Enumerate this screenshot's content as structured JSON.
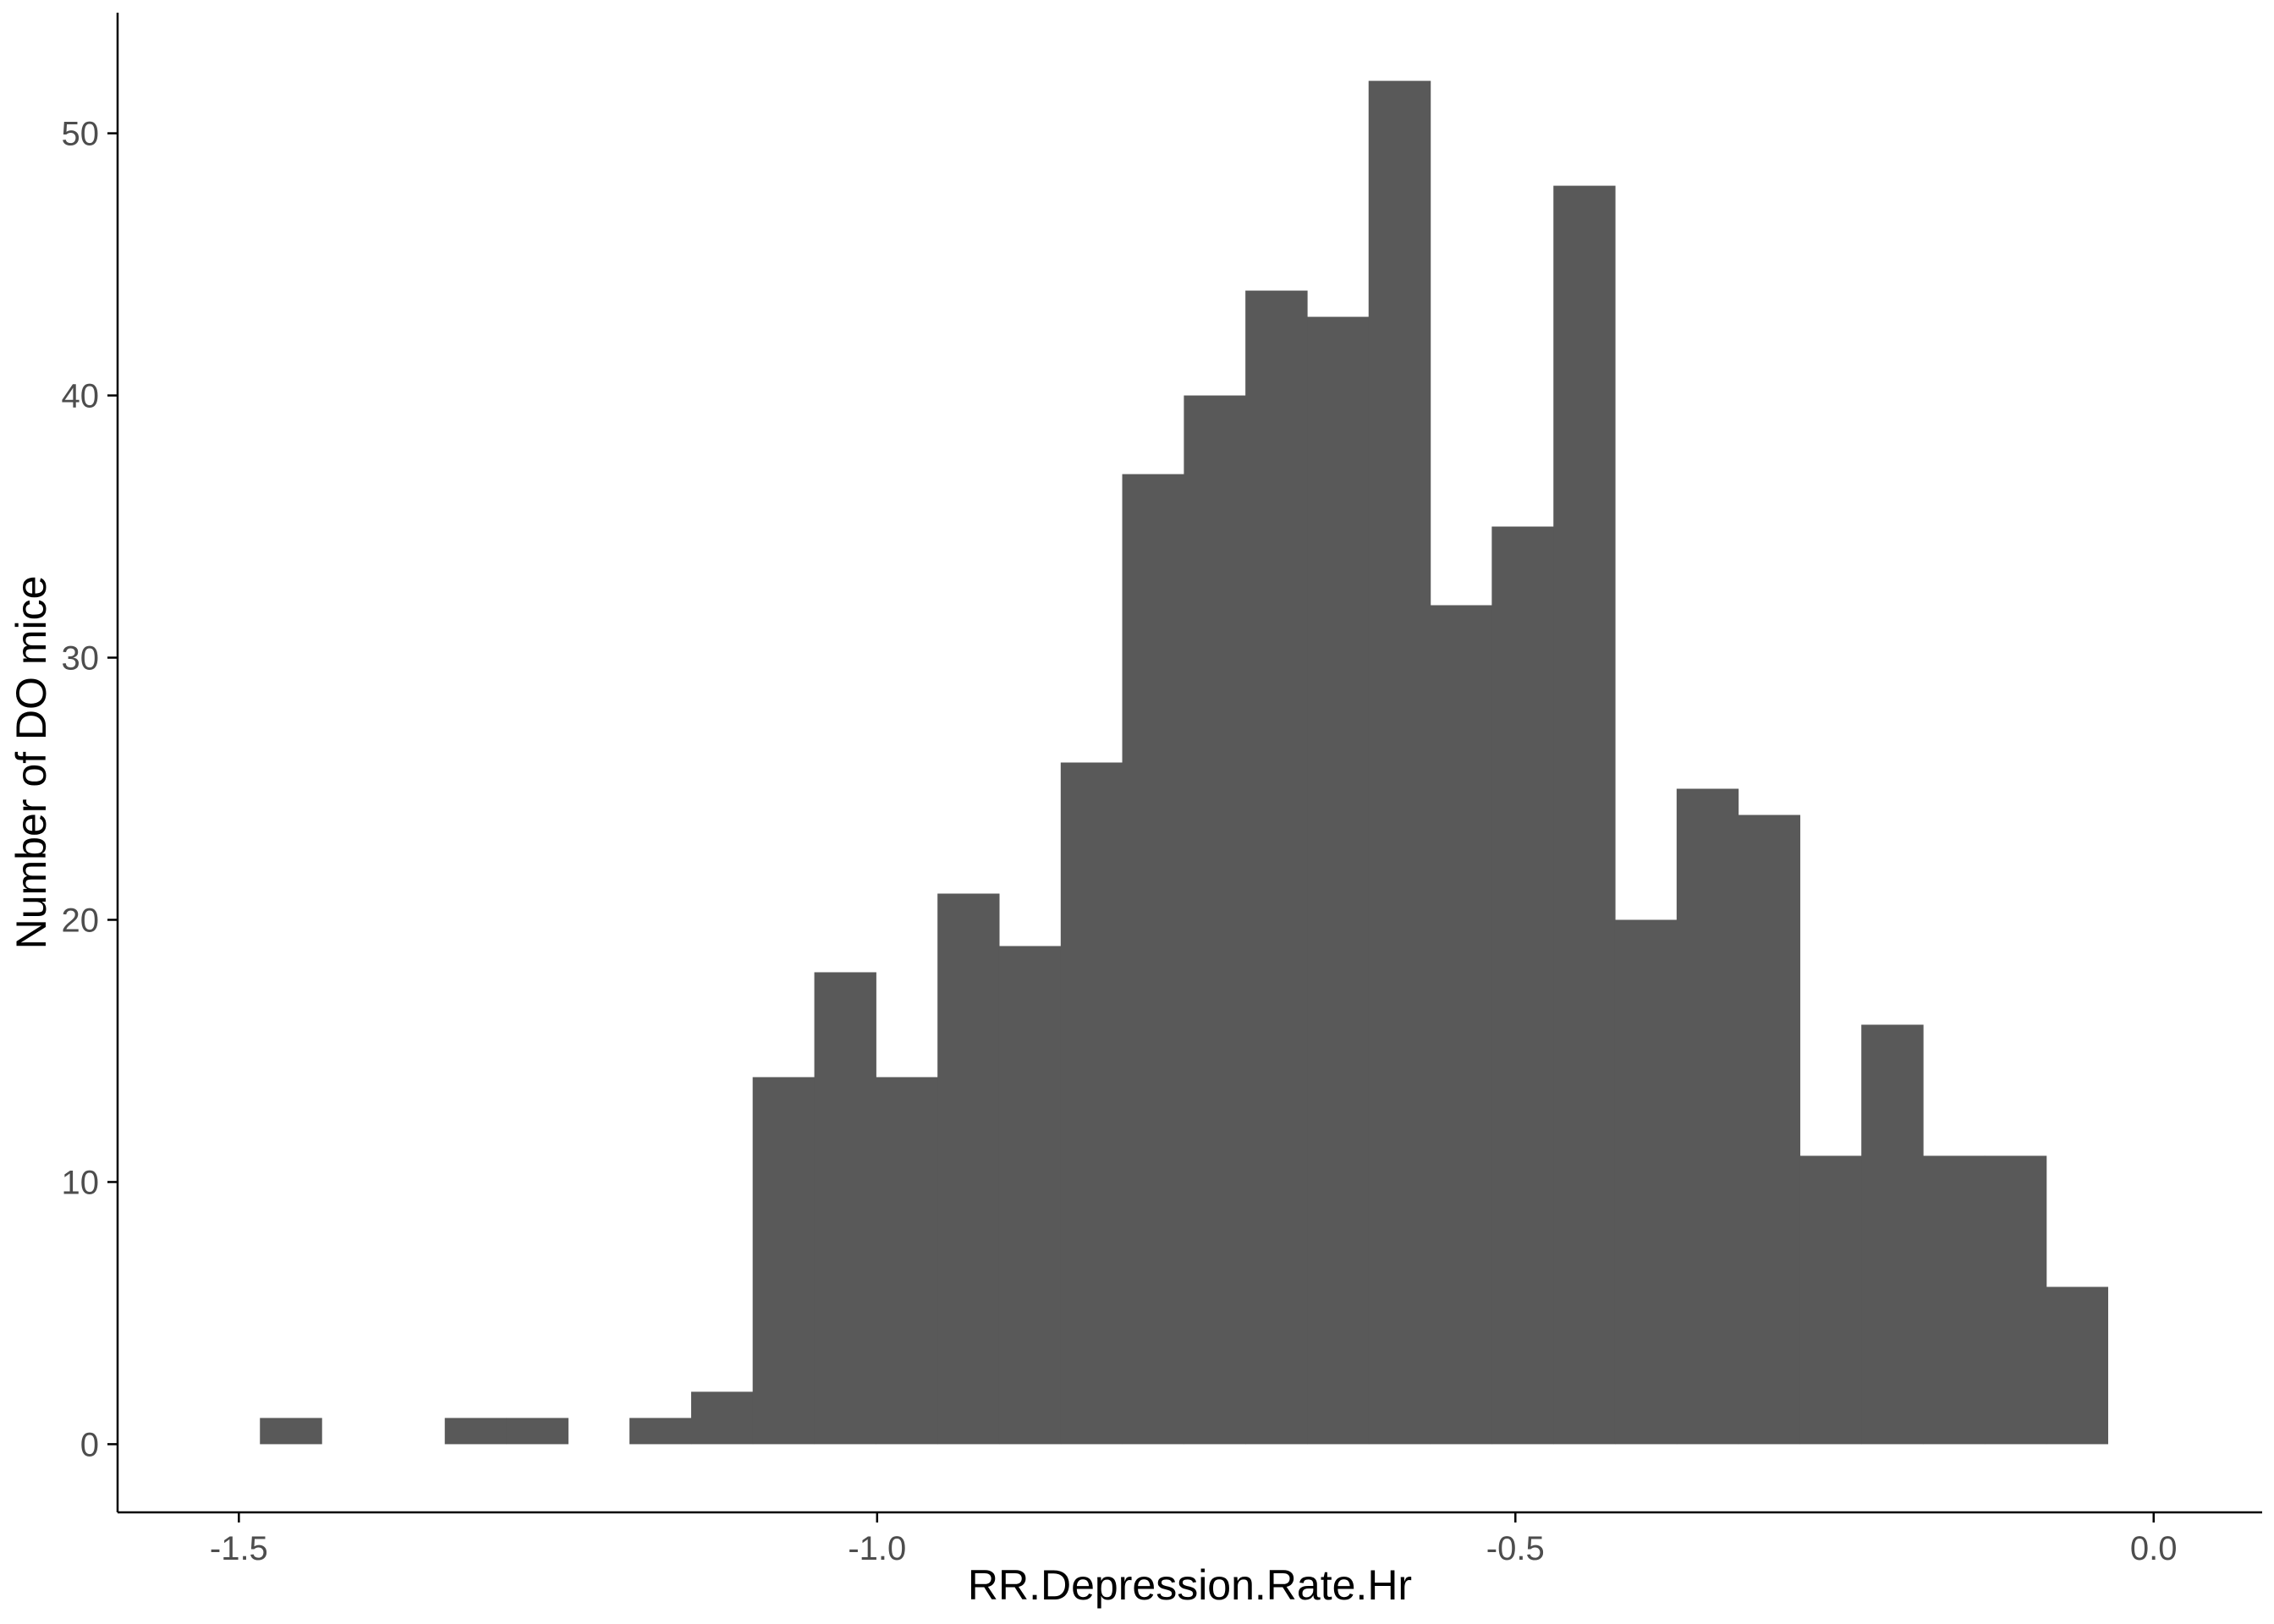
{
  "chart_data": {
    "type": "bar",
    "subtype": "histogram",
    "title": "",
    "xlabel": "RR.Depression.Rate.Hr",
    "ylabel": "Number of DO mice",
    "xlim": [
      -1.595,
      0.085
    ],
    "ylim": [
      -2.6,
      54.6
    ],
    "x_ticks": [
      -1.5,
      -1.0,
      -0.5,
      0.0
    ],
    "x_tick_labels": [
      "-1.5",
      "-1.0",
      "-0.5",
      "0.0"
    ],
    "y_ticks": [
      0,
      10,
      20,
      30,
      40,
      50
    ],
    "y_tick_labels": [
      "0",
      "10",
      "20",
      "30",
      "40",
      "50"
    ],
    "bin_width": 0.04825,
    "bins": [
      {
        "start": -1.4835,
        "end": -1.4352,
        "count": 1
      },
      {
        "start": -1.4352,
        "end": -1.387,
        "count": 0
      },
      {
        "start": -1.387,
        "end": -1.3387,
        "count": 0
      },
      {
        "start": -1.3387,
        "end": -1.2905,
        "count": 1
      },
      {
        "start": -1.2905,
        "end": -1.2422,
        "count": 1
      },
      {
        "start": -1.2422,
        "end": -1.194,
        "count": 0
      },
      {
        "start": -1.194,
        "end": -1.1457,
        "count": 1
      },
      {
        "start": -1.1457,
        "end": -1.0975,
        "count": 2
      },
      {
        "start": -1.0975,
        "end": -1.0492,
        "count": 14
      },
      {
        "start": -1.0492,
        "end": -1.001,
        "count": 18
      },
      {
        "start": -1.001,
        "end": -0.9527,
        "count": 14
      },
      {
        "start": -0.9527,
        "end": -0.9045,
        "count": 21
      },
      {
        "start": -0.9045,
        "end": -0.8562,
        "count": 19
      },
      {
        "start": -0.8562,
        "end": -0.808,
        "count": 26
      },
      {
        "start": -0.808,
        "end": -0.7597,
        "count": 37
      },
      {
        "start": -0.7597,
        "end": -0.7115,
        "count": 40
      },
      {
        "start": -0.7115,
        "end": -0.6632,
        "count": 44
      },
      {
        "start": -0.6632,
        "end": -0.615,
        "count": 43
      },
      {
        "start": -0.615,
        "end": -0.5667,
        "count": 52
      },
      {
        "start": -0.5667,
        "end": -0.5185,
        "count": 32
      },
      {
        "start": -0.5185,
        "end": -0.4702,
        "count": 35
      },
      {
        "start": -0.4702,
        "end": -0.422,
        "count": 48
      },
      {
        "start": -0.422,
        "end": -0.3737,
        "count": 20
      },
      {
        "start": -0.3737,
        "end": -0.3255,
        "count": 25
      },
      {
        "start": -0.3255,
        "end": -0.2772,
        "count": 24
      },
      {
        "start": -0.2772,
        "end": -0.229,
        "count": 11
      },
      {
        "start": -0.229,
        "end": -0.1807,
        "count": 16
      },
      {
        "start": -0.1807,
        "end": -0.1325,
        "count": 11
      },
      {
        "start": -0.1325,
        "end": -0.0842,
        "count": 11
      },
      {
        "start": -0.0842,
        "end": -0.036,
        "count": 6
      }
    ],
    "bar_color": "#595959",
    "axis_color": "#000000",
    "tick_label_color": "#4d4d4d",
    "background": "#ffffff",
    "grid": false,
    "legend": "none"
  }
}
